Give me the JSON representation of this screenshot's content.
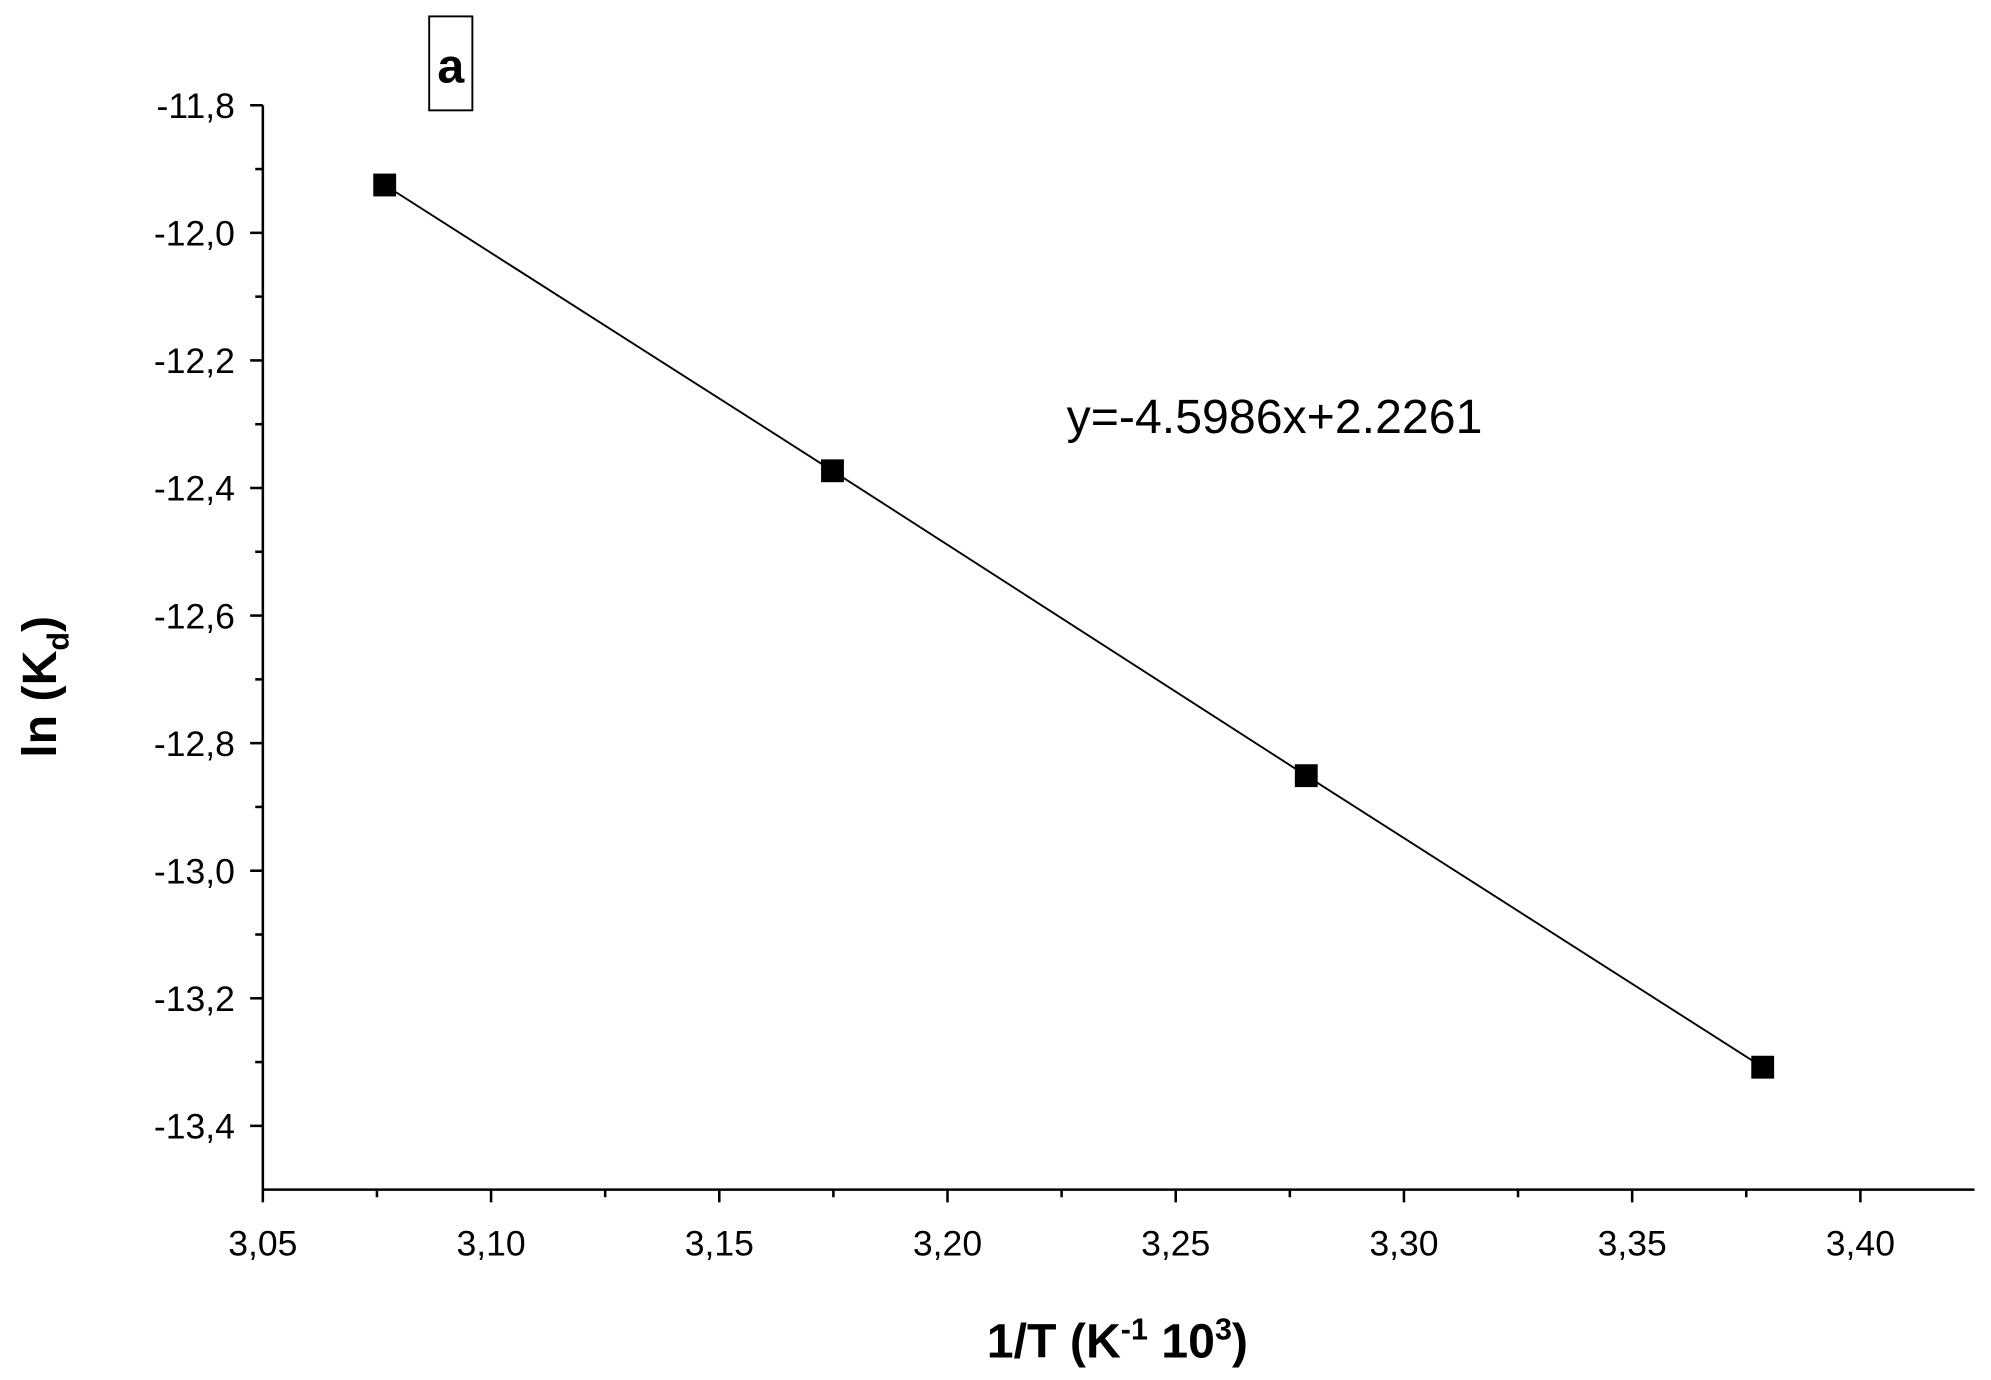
{
  "chart_data": {
    "type": "line",
    "panel_label": "a",
    "annotation": "y=-4.5986x+2.2261",
    "x_label": [
      "1/T (K",
      "-1",
      " 10",
      "3",
      ")"
    ],
    "y_label": [
      "ln (K",
      "d",
      ")"
    ],
    "series": [
      {
        "color": "#000000",
        "x": [
          3.0767,
          3.1748,
          3.2786,
          3.3786
        ],
        "values": [
          -11.925,
          -12.373,
          -12.851,
          -13.308
        ]
      }
    ],
    "xlim": [
      3.05,
      3.425
    ],
    "ylim": [
      -13.5,
      -11.8
    ],
    "xticks": [
      {
        "value": 3.05,
        "label": "3,05"
      },
      {
        "value": 3.1,
        "label": "3,10"
      },
      {
        "value": 3.15,
        "label": "3,15"
      },
      {
        "value": 3.2,
        "label": "3,20"
      },
      {
        "value": 3.25,
        "label": "3,25"
      },
      {
        "value": 3.3,
        "label": "3,30"
      },
      {
        "value": 3.35,
        "label": "3,35"
      },
      {
        "value": 3.4,
        "label": "3,40"
      }
    ],
    "yticks": [
      {
        "value": -11.8,
        "label": "-11,8"
      },
      {
        "value": -12.0,
        "label": "-12,0"
      },
      {
        "value": -12.2,
        "label": "-12,2"
      },
      {
        "value": -12.4,
        "label": "-12,4"
      },
      {
        "value": -12.6,
        "label": "-12,6"
      },
      {
        "value": -12.8,
        "label": "-12,8"
      },
      {
        "value": -13.0,
        "label": "-13,0"
      },
      {
        "value": -13.2,
        "label": "-13,2"
      },
      {
        "value": -13.4,
        "label": "-13,4"
      }
    ],
    "grid": false
  }
}
